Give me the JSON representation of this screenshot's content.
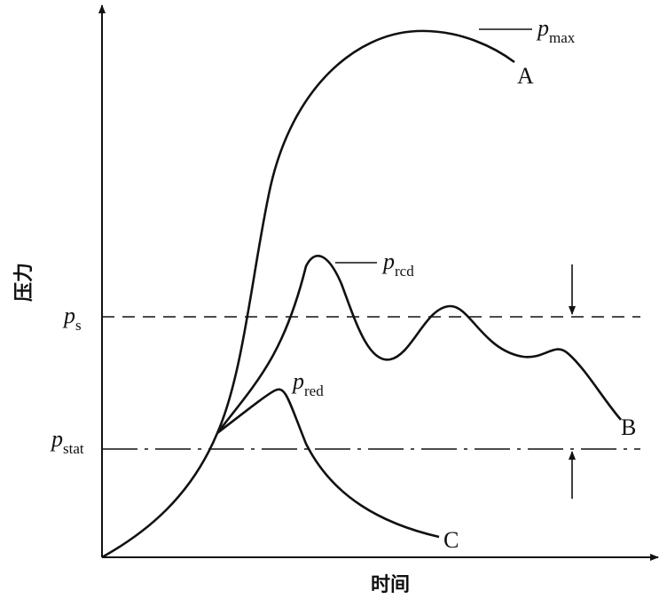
{
  "axes": {
    "y_label": "压力",
    "x_label": "时间"
  },
  "levels": [
    {
      "symbol": "p",
      "subscript": "s"
    },
    {
      "symbol": "p",
      "subscript": "stat"
    }
  ],
  "curves": [
    {
      "name": "A",
      "peak": {
        "symbol": "p",
        "subscript": "max"
      }
    },
    {
      "name": "B",
      "peak": {
        "symbol": "p",
        "subscript": "rcd"
      }
    },
    {
      "name": "C",
      "peak": {
        "symbol": "p",
        "subscript": "red"
      }
    }
  ]
}
